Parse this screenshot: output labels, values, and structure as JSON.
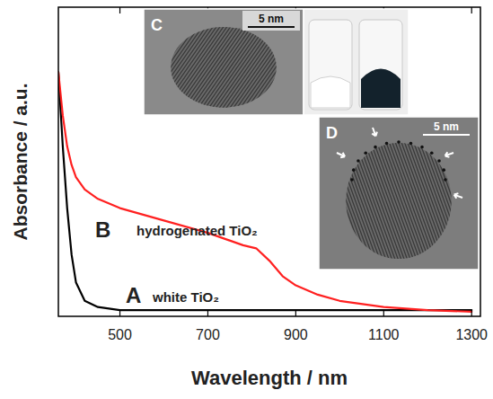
{
  "chart_data": {
    "type": "line",
    "x_label": "Wavelength / nm",
    "y_label": "Absorbance / a.u.",
    "x": [
      360,
      370,
      380,
      390,
      400,
      420,
      450,
      500,
      600,
      700,
      780,
      810,
      840,
      870,
      900,
      950,
      1000,
      1100,
      1200,
      1300
    ],
    "xlim": [
      360,
      1320
    ],
    "xticks": [
      500,
      700,
      900,
      1100,
      1300
    ],
    "ylim": [
      0,
      1
    ],
    "tick_labels": "x",
    "series": [
      {
        "name": "white TiO₂",
        "letter": "A",
        "color": "#000000",
        "values": [
          0.79,
          0.55,
          0.35,
          0.2,
          0.11,
          0.05,
          0.03,
          0.02,
          0.02,
          0.02,
          0.02,
          0.02,
          0.02,
          0.02,
          0.02,
          0.02,
          0.02,
          0.02,
          0.02,
          0.02
        ]
      },
      {
        "name": "hydrogenated TiO₂",
        "letter": "B",
        "color": "#ff2020",
        "values": [
          0.79,
          0.65,
          0.55,
          0.49,
          0.45,
          0.41,
          0.38,
          0.35,
          0.31,
          0.27,
          0.23,
          0.22,
          0.18,
          0.13,
          0.1,
          0.07,
          0.05,
          0.03,
          0.02,
          0.015
        ]
      }
    ],
    "insets": [
      {
        "label": "C",
        "scale_bar": "5 nm"
      },
      {
        "label": "D",
        "scale_bar": "5 nm"
      }
    ]
  }
}
